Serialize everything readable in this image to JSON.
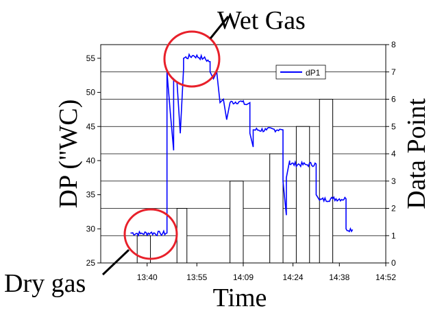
{
  "chart_data": {
    "type": "line",
    "title": "",
    "xlabel": "Time",
    "ylabel": "DP (\"WC)",
    "ylabel_right": "Data Point",
    "x_ticks": [
      "13:40",
      "13:55",
      "14:09",
      "14:24",
      "14:38",
      "14:52"
    ],
    "xlim": [
      "13:26",
      "14:52"
    ],
    "ylim": [
      25,
      57
    ],
    "yticks": [
      25,
      30,
      35,
      40,
      45,
      50,
      55
    ],
    "ylim_right": [
      0,
      8
    ],
    "yticks_right": [
      0,
      1,
      2,
      3,
      4,
      5,
      6,
      7,
      8
    ],
    "grid": true,
    "legend": {
      "placement": "top-right",
      "entries": [
        "dP1"
      ]
    },
    "series": [
      {
        "name": "dP1",
        "axis": "left",
        "color": "#0000ff",
        "points": [
          [
            "13:35",
            29.4
          ],
          [
            "13:38",
            29.3
          ],
          [
            "13:41",
            29.4
          ],
          [
            "13:44",
            29.3
          ],
          [
            "13:46",
            29.4
          ],
          [
            "13:46",
            53.0
          ],
          [
            "13:47",
            47.0
          ],
          [
            "13:48",
            41.5
          ],
          [
            "13:48",
            52.0
          ],
          [
            "13:49",
            51.5
          ],
          [
            "13:50",
            44.0
          ],
          [
            "13:51",
            53.5
          ],
          [
            "13:51",
            55.0
          ],
          [
            "13:54",
            55.4
          ],
          [
            "13:57",
            55.0
          ],
          [
            "13:59",
            54.5
          ],
          [
            "13:59",
            53.0
          ],
          [
            "14:00",
            52.0
          ],
          [
            "14:01",
            53.0
          ],
          [
            "14:02",
            48.5
          ],
          [
            "14:03",
            49.0
          ],
          [
            "14:04",
            46.0
          ],
          [
            "14:05",
            48.5
          ],
          [
            "14:08",
            48.7
          ],
          [
            "14:10",
            48.2
          ],
          [
            "14:11",
            48.5
          ],
          [
            "14:11",
            44.0
          ],
          [
            "14:12",
            42.0
          ],
          [
            "14:12",
            44.5
          ],
          [
            "14:16",
            44.5
          ],
          [
            "14:20",
            44.6
          ],
          [
            "14:21",
            44.5
          ],
          [
            "14:21",
            37.0
          ],
          [
            "14:22",
            32.0
          ],
          [
            "14:22",
            37.5
          ],
          [
            "14:23",
            40.0
          ],
          [
            "14:23",
            39.5
          ],
          [
            "14:28",
            39.4
          ],
          [
            "14:31",
            39.5
          ],
          [
            "14:31",
            35.0
          ],
          [
            "14:32",
            34.2
          ],
          [
            "14:36",
            34.4
          ],
          [
            "14:40",
            34.4
          ],
          [
            "14:40",
            30.0
          ],
          [
            "14:42",
            29.9
          ]
        ]
      },
      {
        "name": "Data Point",
        "type": "bar",
        "axis": "right",
        "bars": [
          {
            "x0": "13:37",
            "x1": "13:41",
            "value": 1
          },
          {
            "x0": "13:49",
            "x1": "13:52",
            "value": 2
          },
          {
            "x0": "14:05",
            "x1": "14:09",
            "value": 3
          },
          {
            "x0": "14:17",
            "x1": "14:21",
            "value": 4
          },
          {
            "x0": "14:25",
            "x1": "14:29",
            "value": 5
          },
          {
            "x0": "14:32",
            "x1": "14:36",
            "value": 6
          }
        ]
      }
    ],
    "annotations": [
      {
        "text": "Wet Gas",
        "at": [
          "13:55",
          55
        ],
        "shape": "circle"
      },
      {
        "text": "Dry gas",
        "at": [
          "13:40",
          29.4
        ],
        "shape": "circle"
      }
    ]
  }
}
